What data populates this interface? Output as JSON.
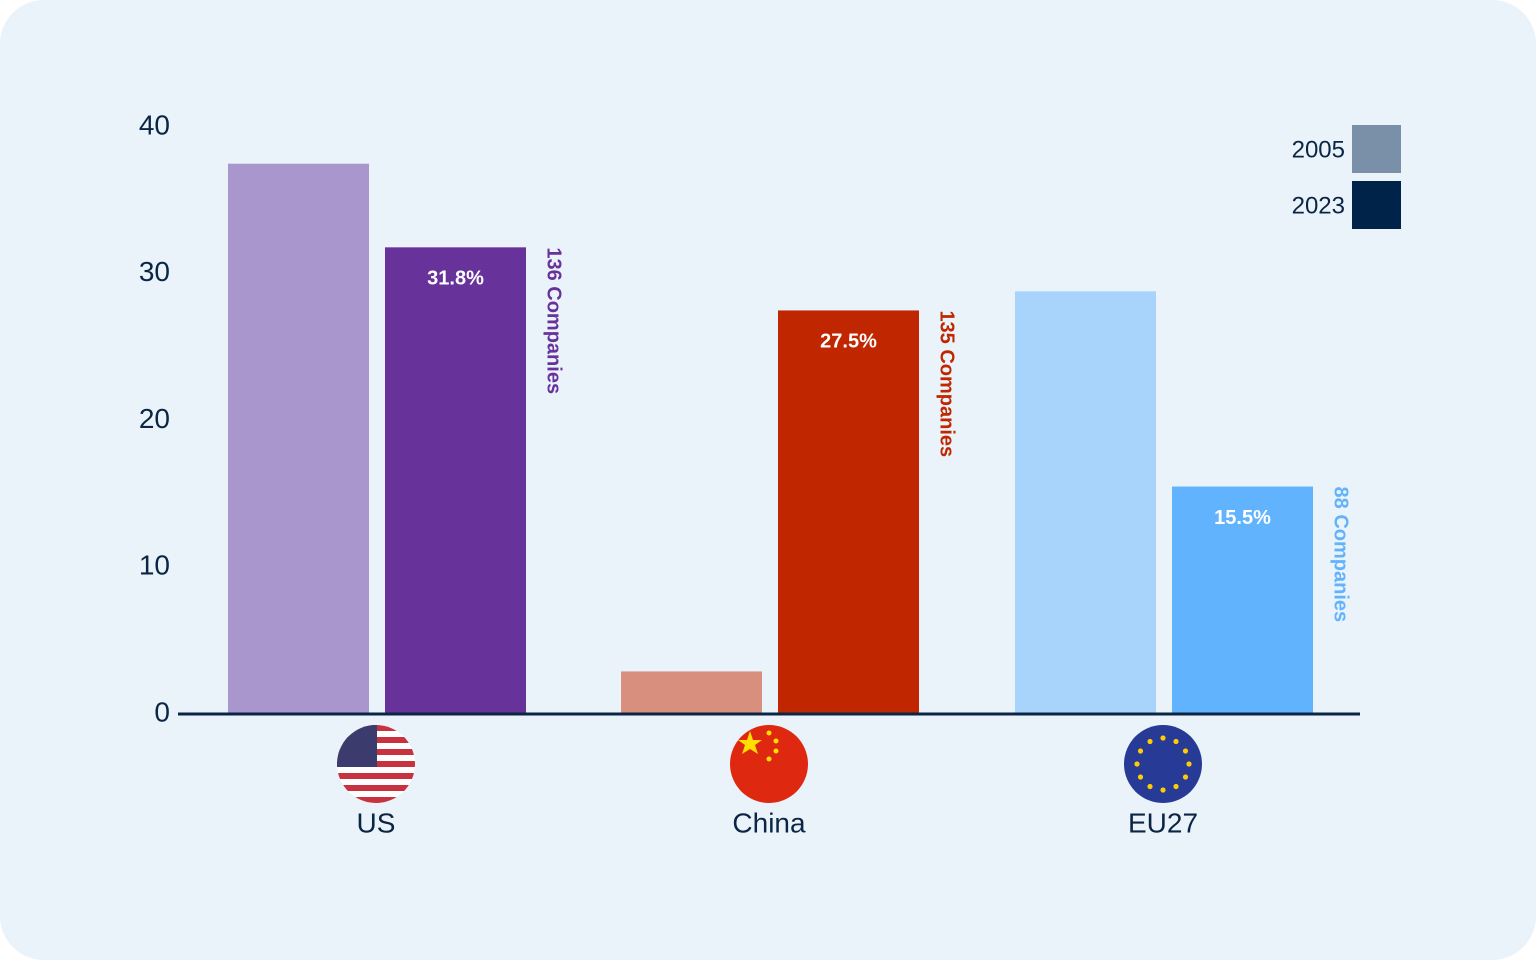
{
  "chart_data": {
    "type": "bar",
    "categories": [
      "US",
      "China",
      "EU27"
    ],
    "series": [
      {
        "name": "2005",
        "color": "#7a90a8",
        "bar_colors": [
          "#a996cc",
          "#d88f7e",
          "#a8d4fb"
        ],
        "values": [
          37.5,
          2.9,
          28.8
        ]
      },
      {
        "name": "2023",
        "color": "#00234a",
        "bar_colors": [
          "#68329b",
          "#c02600",
          "#62b3fd"
        ],
        "values": [
          31.8,
          27.5,
          15.5
        ],
        "value_labels": [
          "31.8%",
          "27.5%",
          "15.5%"
        ]
      }
    ],
    "annotations": [
      "136 Companies",
      "135 Companies",
      "88 Companies"
    ],
    "ylim": [
      0,
      40
    ],
    "yticks": [
      0,
      10,
      20,
      30,
      40
    ],
    "grid": false,
    "legend": "top-right"
  }
}
